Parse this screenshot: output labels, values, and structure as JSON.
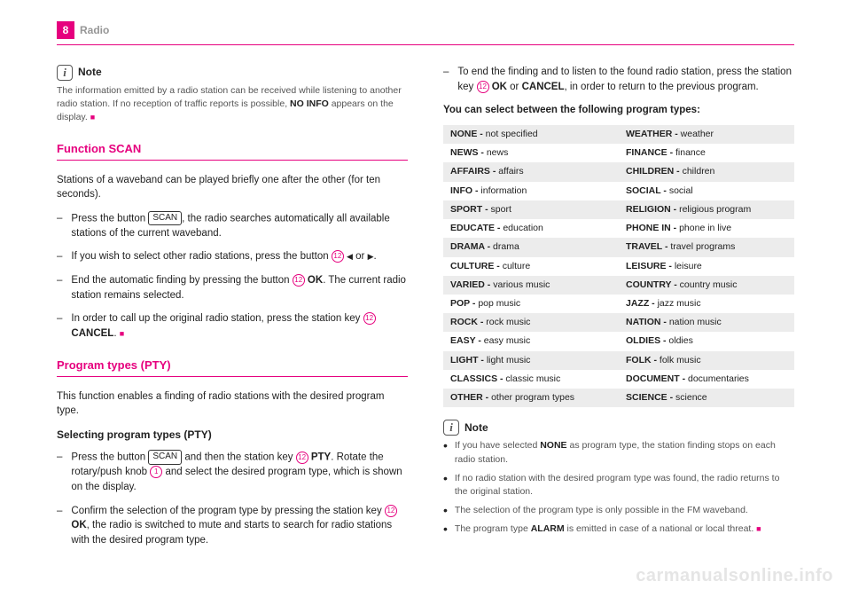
{
  "header": {
    "page_number": "8",
    "section": "Radio"
  },
  "colors": {
    "brand": "#e6007e",
    "muted": "#969696",
    "gray_row": "#ececec",
    "body": "#555"
  },
  "left": {
    "note1": {
      "label": "Note",
      "body_pre": "The information emitted by a radio station can be received while listening to another radio station. If no reception of traffic reports is possible, ",
      "body_bold": "NO INFO",
      "body_post": " appears on the display. "
    },
    "scan": {
      "title": "Function SCAN",
      "intro": "Stations of a waveband can be played briefly one after the other (for ten seconds).",
      "items": [
        {
          "pre": "Press the button ",
          "btn": "SCAN",
          "post": ", the radio searches automatically all available stations of the current waveband."
        },
        {
          "pre": "If you wish to select other radio stations, press the button ",
          "circ": "12",
          "post_tri": " or ",
          "end": "."
        },
        {
          "pre": "End the automatic finding by pressing the button ",
          "circ": "12",
          "bold": " OK",
          "post": ". The current radio station remains selected."
        },
        {
          "pre": "In order to call up the original radio station, press the station key ",
          "circ": "12",
          "bold": " CANCEL",
          "post": ". "
        }
      ]
    },
    "pty": {
      "title": "Program types (PTY)",
      "intro": "This function enables a finding of radio stations with the desired program type.",
      "subhead": "Selecting program types (PTY)",
      "items": [
        {
          "pre": "Press the button ",
          "btn": "SCAN",
          "mid": " and then the station key ",
          "circ1": "12",
          "bold1": " PTY",
          "mid2": ". Rotate the rotary/push knob ",
          "circ2": "1",
          "post": " and select the desired program type, which is shown on the display."
        },
        {
          "pre": "Confirm the selection of the program type by pressing the station key ",
          "circ": "12",
          "bold": " OK",
          "post": ", the radio is switched to mute and starts to search for radio stations with the desired program type."
        }
      ]
    }
  },
  "right": {
    "top_item": {
      "pre": "To end the finding and to listen to the found radio station, press the station key ",
      "circ": "12",
      "bold1": " OK",
      "mid": " or ",
      "bold2": "CANCEL",
      "post": ", in order to return to the previous program."
    },
    "subhead": "You can select between the following program types:",
    "table": [
      [
        [
          "NONE - ",
          "not specified"
        ],
        [
          "WEATHER - ",
          "weather"
        ]
      ],
      [
        [
          "NEWS - ",
          "news"
        ],
        [
          "FINANCE - ",
          "finance"
        ]
      ],
      [
        [
          "AFFAIRS - ",
          "affairs"
        ],
        [
          "CHILDREN - ",
          "children"
        ]
      ],
      [
        [
          "INFO - ",
          "information"
        ],
        [
          "SOCIAL - ",
          "social"
        ]
      ],
      [
        [
          "SPORT - ",
          "sport"
        ],
        [
          "RELIGION - ",
          "religious program"
        ]
      ],
      [
        [
          "EDUCATE - ",
          "education"
        ],
        [
          "PHONE IN - ",
          "phone in live"
        ]
      ],
      [
        [
          "DRAMA - ",
          "drama"
        ],
        [
          "TRAVEL - ",
          "travel programs"
        ]
      ],
      [
        [
          "CULTURE - ",
          "culture"
        ],
        [
          "LEISURE - ",
          "leisure"
        ]
      ],
      [
        [
          "VARIED - ",
          "various music"
        ],
        [
          "COUNTRY - ",
          "country music"
        ]
      ],
      [
        [
          "POP - ",
          "pop music"
        ],
        [
          "JAZZ - ",
          "jazz music"
        ]
      ],
      [
        [
          "ROCK - ",
          "rock music"
        ],
        [
          "NATION - ",
          "nation music"
        ]
      ],
      [
        [
          "EASY - ",
          "easy music"
        ],
        [
          "OLDIES - ",
          "oldies"
        ]
      ],
      [
        [
          "LIGHT - ",
          "light music"
        ],
        [
          "FOLK - ",
          "folk music"
        ]
      ],
      [
        [
          "CLASSICS - ",
          "classic music"
        ],
        [
          "DOCUMENT - ",
          "documentaries"
        ]
      ],
      [
        [
          "OTHER - ",
          "other program types"
        ],
        [
          "SCIENCE - ",
          "science"
        ]
      ]
    ],
    "note2": {
      "label": "Note",
      "bullets": [
        {
          "pre": "If you have selected ",
          "bold": "NONE",
          "post": " as program type, the station finding stops on each radio station."
        },
        {
          "text": "If no radio station with the desired program type was found, the radio returns to the original station."
        },
        {
          "text": "The selection of the program type is only possible in the FM waveband."
        },
        {
          "pre": "The program type ",
          "bold": "ALARM",
          "post": " is emitted in case of a national or local threat. "
        }
      ]
    }
  },
  "watermark": "carmanualsonline.info"
}
